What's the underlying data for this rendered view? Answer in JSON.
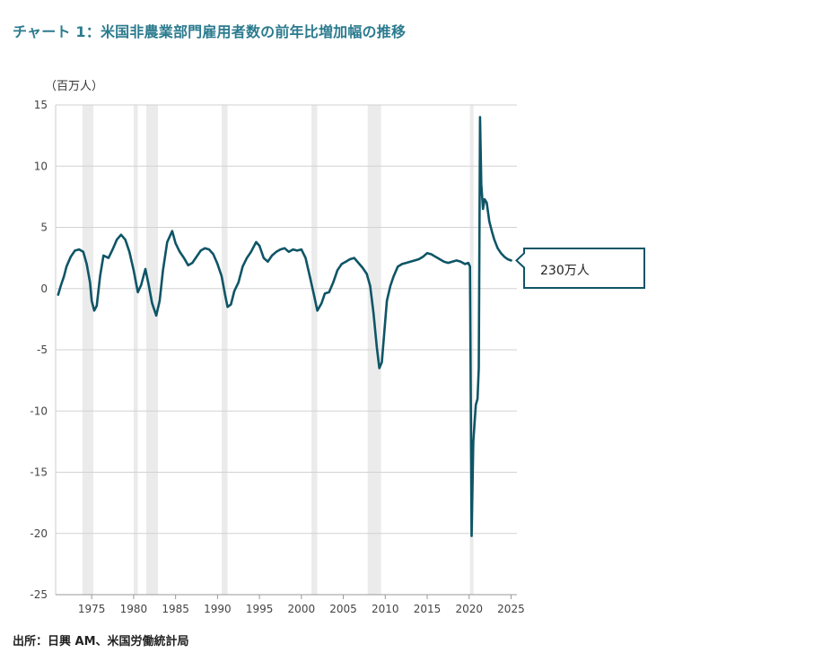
{
  "title": "チャート 1：米国非農業部門雇用者数の前年比増加幅の推移",
  "source": "出所：日興 AM、米国労働統計局",
  "chart_data": {
    "type": "line",
    "unit_label": "（百万人）",
    "ylim": [
      -25,
      15
    ],
    "yticks": [
      15,
      10,
      5,
      0,
      -5,
      -10,
      -15,
      -20,
      -25
    ],
    "xlim": [
      1970.7,
      2025.7
    ],
    "xticks": [
      1975,
      1980,
      1985,
      1990,
      1995,
      2000,
      2005,
      2010,
      2015,
      2020,
      2025
    ],
    "grid": true,
    "legend": "none",
    "recession_bands": [
      [
        1973.9,
        1975.2
      ],
      [
        1980.0,
        1980.5
      ],
      [
        1981.5,
        1982.9
      ],
      [
        1990.5,
        1991.2
      ],
      [
        2001.2,
        2001.9
      ],
      [
        2007.9,
        2009.5
      ],
      [
        2020.1,
        2020.3
      ]
    ],
    "callout": {
      "text": "230万人",
      "x": 2025.0,
      "y": 2.3
    },
    "series": [
      {
        "color": "#0e5566",
        "points": [
          [
            1971.0,
            -0.5
          ],
          [
            1971.3,
            0.2
          ],
          [
            1971.7,
            1.0
          ],
          [
            1972.0,
            1.8
          ],
          [
            1972.5,
            2.6
          ],
          [
            1973.0,
            3.1
          ],
          [
            1973.5,
            3.2
          ],
          [
            1974.0,
            3.0
          ],
          [
            1974.4,
            2.0
          ],
          [
            1974.8,
            0.5
          ],
          [
            1975.0,
            -1.0
          ],
          [
            1975.3,
            -1.8
          ],
          [
            1975.6,
            -1.4
          ],
          [
            1976.0,
            1.0
          ],
          [
            1976.4,
            2.7
          ],
          [
            1977.0,
            2.5
          ],
          [
            1977.5,
            3.2
          ],
          [
            1978.0,
            4.0
          ],
          [
            1978.5,
            4.4
          ],
          [
            1979.0,
            4.0
          ],
          [
            1979.5,
            3.0
          ],
          [
            1980.0,
            1.5
          ],
          [
            1980.5,
            -0.3
          ],
          [
            1980.9,
            0.3
          ],
          [
            1981.4,
            1.6
          ],
          [
            1981.8,
            0.3
          ],
          [
            1982.2,
            -1.2
          ],
          [
            1982.7,
            -2.2
          ],
          [
            1983.1,
            -1.0
          ],
          [
            1983.5,
            1.5
          ],
          [
            1984.0,
            3.8
          ],
          [
            1984.6,
            4.7
          ],
          [
            1985.0,
            3.7
          ],
          [
            1985.5,
            3.0
          ],
          [
            1986.0,
            2.5
          ],
          [
            1986.5,
            1.9
          ],
          [
            1987.0,
            2.1
          ],
          [
            1987.5,
            2.6
          ],
          [
            1988.0,
            3.1
          ],
          [
            1988.5,
            3.3
          ],
          [
            1989.0,
            3.2
          ],
          [
            1989.5,
            2.8
          ],
          [
            1990.0,
            2.0
          ],
          [
            1990.5,
            1.0
          ],
          [
            1990.9,
            -0.5
          ],
          [
            1991.2,
            -1.5
          ],
          [
            1991.6,
            -1.3
          ],
          [
            1992.0,
            -0.2
          ],
          [
            1992.5,
            0.5
          ],
          [
            1993.0,
            1.8
          ],
          [
            1993.5,
            2.5
          ],
          [
            1994.0,
            3.0
          ],
          [
            1994.6,
            3.8
          ],
          [
            1995.0,
            3.5
          ],
          [
            1995.5,
            2.5
          ],
          [
            1996.0,
            2.2
          ],
          [
            1996.5,
            2.7
          ],
          [
            1997.0,
            3.0
          ],
          [
            1997.5,
            3.2
          ],
          [
            1998.0,
            3.3
          ],
          [
            1998.5,
            3.0
          ],
          [
            1999.0,
            3.2
          ],
          [
            1999.5,
            3.1
          ],
          [
            2000.0,
            3.2
          ],
          [
            2000.5,
            2.5
          ],
          [
            2001.0,
            1.0
          ],
          [
            2001.5,
            -0.5
          ],
          [
            2001.9,
            -1.8
          ],
          [
            2002.4,
            -1.2
          ],
          [
            2002.8,
            -0.4
          ],
          [
            2003.3,
            -0.3
          ],
          [
            2003.8,
            0.5
          ],
          [
            2004.3,
            1.5
          ],
          [
            2004.8,
            2.0
          ],
          [
            2005.3,
            2.2
          ],
          [
            2005.8,
            2.4
          ],
          [
            2006.3,
            2.5
          ],
          [
            2006.8,
            2.1
          ],
          [
            2007.3,
            1.7
          ],
          [
            2007.8,
            1.2
          ],
          [
            2008.2,
            0.2
          ],
          [
            2008.6,
            -2.0
          ],
          [
            2009.0,
            -4.8
          ],
          [
            2009.3,
            -6.5
          ],
          [
            2009.6,
            -6.0
          ],
          [
            2009.9,
            -3.5
          ],
          [
            2010.2,
            -1.0
          ],
          [
            2010.6,
            0.2
          ],
          [
            2011.0,
            1.0
          ],
          [
            2011.5,
            1.8
          ],
          [
            2012.0,
            2.0
          ],
          [
            2012.5,
            2.1
          ],
          [
            2013.0,
            2.2
          ],
          [
            2013.5,
            2.3
          ],
          [
            2014.0,
            2.4
          ],
          [
            2014.5,
            2.6
          ],
          [
            2015.0,
            2.9
          ],
          [
            2015.5,
            2.8
          ],
          [
            2016.0,
            2.6
          ],
          [
            2016.5,
            2.4
          ],
          [
            2017.0,
            2.2
          ],
          [
            2017.5,
            2.1
          ],
          [
            2018.0,
            2.2
          ],
          [
            2018.5,
            2.3
          ],
          [
            2019.0,
            2.2
          ],
          [
            2019.5,
            2.0
          ],
          [
            2019.9,
            2.1
          ],
          [
            2020.1,
            1.8
          ],
          [
            2020.3,
            -20.2
          ],
          [
            2020.5,
            -12.5
          ],
          [
            2020.8,
            -9.5
          ],
          [
            2021.0,
            -9.0
          ],
          [
            2021.15,
            -6.5
          ],
          [
            2021.3,
            14.0
          ],
          [
            2021.45,
            8.5
          ],
          [
            2021.65,
            6.5
          ],
          [
            2021.85,
            7.3
          ],
          [
            2022.1,
            7.0
          ],
          [
            2022.4,
            5.5
          ],
          [
            2022.7,
            4.7
          ],
          [
            2023.0,
            4.0
          ],
          [
            2023.4,
            3.3
          ],
          [
            2023.8,
            2.9
          ],
          [
            2024.2,
            2.6
          ],
          [
            2024.6,
            2.4
          ],
          [
            2025.0,
            2.3
          ]
        ]
      }
    ]
  }
}
